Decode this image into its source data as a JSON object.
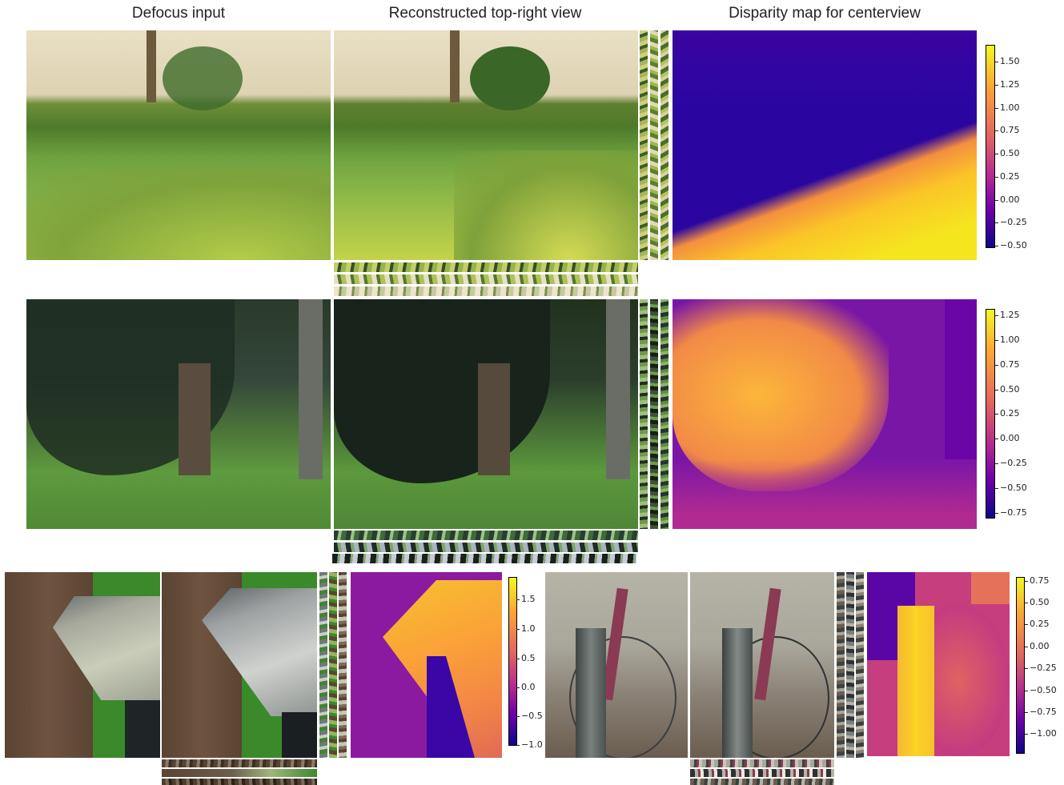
{
  "headers": {
    "col1": "Defocus input",
    "col2": "Reconstructed top-right view",
    "col3": "Disparity map for centerview"
  },
  "colorbars": {
    "row1": [
      "1.50",
      "1.25",
      "1.00",
      "0.75",
      "0.50",
      "0.25",
      "0.00",
      "−0.25",
      "−0.50"
    ],
    "row2": [
      "1.25",
      "1.00",
      "0.75",
      "0.50",
      "0.25",
      "0.00",
      "−0.25",
      "−0.50",
      "−0.75"
    ],
    "row3a": [
      "1.5",
      "1.0",
      "0.5",
      "0.0",
      "−0.5",
      "−1.0"
    ],
    "row3b": [
      "0.75",
      "0.50",
      "0.25",
      "0.00",
      "−0.25",
      "−0.50",
      "−0.75",
      "−1.00"
    ]
  },
  "colors": {
    "plasma_top": "#f0f921",
    "plasma_mid": "#cc4778",
    "plasma_bottom": "#0d0887"
  }
}
